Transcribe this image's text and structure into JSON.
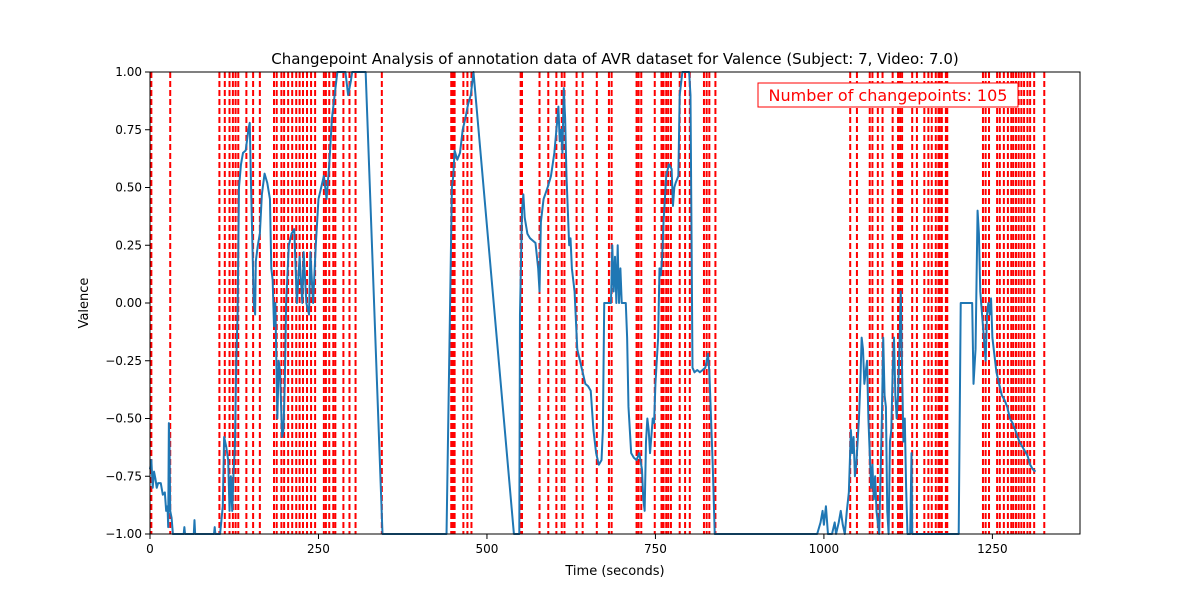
{
  "chart_data": {
    "type": "line",
    "title": "Changepoint Analysis of annotation data of AVR dataset for Valence (Subject: 7, Video: 7.0)",
    "xlabel": "Time (seconds)",
    "ylabel": "Valence",
    "xlim": [
      0,
      1380
    ],
    "ylim": [
      -1.0,
      1.0
    ],
    "x_ticks": [
      0,
      250,
      500,
      750,
      1000,
      1250
    ],
    "y_ticks": [
      -1.0,
      -0.75,
      -0.5,
      -0.25,
      0.0,
      0.25,
      0.5,
      0.75,
      1.0
    ],
    "x_tick_labels": [
      "0",
      "250",
      "500",
      "750",
      "1000",
      "1250"
    ],
    "y_tick_labels": [
      "−1.00",
      "−0.75",
      "−0.50",
      "−0.25",
      "0.00",
      "0.25",
      "0.50",
      "0.75",
      "1.00"
    ],
    "grid": false,
    "annotation": "Number of changepoints: 105",
    "colors": {
      "series": "#1f77b4",
      "changepoints": "#ff0000"
    },
    "series": [
      {
        "values": [
          [
            0,
            -0.72
          ],
          [
            2,
            -0.68
          ],
          [
            4,
            -0.8
          ],
          [
            6,
            -0.73
          ],
          [
            8,
            -0.76
          ],
          [
            10,
            -0.8
          ],
          [
            12,
            -0.78
          ],
          [
            16,
            -0.78
          ],
          [
            19,
            -0.83
          ],
          [
            22,
            -0.82
          ],
          [
            24,
            -0.9
          ],
          [
            26,
            -0.88
          ],
          [
            27,
            -0.97
          ],
          [
            28,
            -0.52
          ],
          [
            29,
            -0.62
          ],
          [
            30,
            -0.9
          ],
          [
            32,
            -0.93
          ],
          [
            34,
            -1.0
          ],
          [
            50,
            -1.0
          ],
          [
            51,
            -0.97
          ],
          [
            52,
            -1.0
          ],
          [
            65,
            -1.0
          ],
          [
            66,
            -0.94
          ],
          [
            67,
            -1.0
          ],
          [
            80,
            -1.0
          ],
          [
            95,
            -1.0
          ],
          [
            96,
            -0.97
          ],
          [
            97,
            -1.0
          ],
          [
            104,
            -1.0
          ],
          [
            108,
            -0.88
          ],
          [
            110,
            -0.58
          ],
          [
            113,
            -0.62
          ],
          [
            116,
            -0.68
          ],
          [
            118,
            -0.9
          ],
          [
            120,
            -0.75
          ],
          [
            122,
            -0.9
          ],
          [
            124,
            -0.73
          ],
          [
            126,
            -0.62
          ],
          [
            128,
            -0.25
          ],
          [
            130,
            -0.05
          ],
          [
            132,
            0.5
          ],
          [
            135,
            0.6
          ],
          [
            138,
            0.65
          ],
          [
            142,
            0.66
          ],
          [
            146,
            0.75
          ],
          [
            148,
            0.78
          ],
          [
            150,
            0.5
          ],
          [
            152,
            0.25
          ],
          [
            154,
            0.0
          ],
          [
            156,
            -0.05
          ],
          [
            157,
            0.18
          ],
          [
            160,
            0.25
          ],
          [
            163,
            0.3
          ],
          [
            166,
            0.47
          ],
          [
            170,
            0.56
          ],
          [
            174,
            0.52
          ],
          [
            178,
            0.45
          ],
          [
            180,
            0.15
          ],
          [
            182,
            0.1
          ],
          [
            184,
            -0.1
          ],
          [
            186,
            0.0
          ],
          [
            189,
            -0.5
          ],
          [
            191,
            -0.25
          ],
          [
            193,
            -0.3
          ],
          [
            196,
            -0.58
          ],
          [
            198,
            -0.55
          ],
          [
            200,
            -0.35
          ],
          [
            202,
            0.0
          ],
          [
            206,
            0.25
          ],
          [
            210,
            0.3
          ],
          [
            214,
            0.32
          ],
          [
            218,
            0.0
          ],
          [
            222,
            0.2
          ],
          [
            226,
            0.0
          ],
          [
            228,
            0.22
          ],
          [
            232,
            0.0
          ],
          [
            236,
            -0.05
          ],
          [
            238,
            0.22
          ],
          [
            242,
            0.0
          ],
          [
            246,
            0.25
          ],
          [
            250,
            0.45
          ],
          [
            254,
            0.5
          ],
          [
            258,
            0.55
          ],
          [
            262,
            0.45
          ],
          [
            266,
            0.6
          ],
          [
            270,
            0.8
          ],
          [
            274,
            0.9
          ],
          [
            278,
            1.0
          ],
          [
            290,
            1.0
          ],
          [
            294,
            0.9
          ],
          [
            298,
            0.96
          ],
          [
            300,
            1.0
          ],
          [
            310,
            1.0
          ],
          [
            320,
            1.0
          ],
          [
            345,
            -1.0
          ],
          [
            440,
            -1.0
          ],
          [
            448,
            0.5
          ],
          [
            450,
            0.55
          ],
          [
            452,
            0.66
          ],
          [
            456,
            0.62
          ],
          [
            460,
            0.65
          ],
          [
            464,
            0.75
          ],
          [
            468,
            0.8
          ],
          [
            472,
            0.86
          ],
          [
            476,
            0.9
          ],
          [
            480,
            1.0
          ],
          [
            540,
            -1.0
          ],
          [
            548,
            -1.0
          ],
          [
            549,
            -0.05
          ],
          [
            552,
            0.4
          ],
          [
            554,
            0.47
          ],
          [
            556,
            0.37
          ],
          [
            560,
            0.3
          ],
          [
            564,
            0.28
          ],
          [
            568,
            0.27
          ],
          [
            572,
            0.26
          ],
          [
            576,
            0.15
          ],
          [
            578,
            0.05
          ],
          [
            580,
            0.35
          ],
          [
            584,
            0.45
          ],
          [
            590,
            0.5
          ],
          [
            595,
            0.55
          ],
          [
            600,
            0.65
          ],
          [
            604,
            0.78
          ],
          [
            606,
            0.85
          ],
          [
            608,
            0.7
          ],
          [
            610,
            0.75
          ],
          [
            612,
            0.65
          ],
          [
            614,
            0.93
          ],
          [
            616,
            0.8
          ],
          [
            618,
            0.55
          ],
          [
            620,
            0.4
          ],
          [
            622,
            0.25
          ],
          [
            624,
            0.28
          ],
          [
            626,
            0.15
          ],
          [
            630,
            0.05
          ],
          [
            634,
            -0.2
          ],
          [
            638,
            -0.25
          ],
          [
            642,
            -0.3
          ],
          [
            646,
            -0.35
          ],
          [
            650,
            -0.36
          ],
          [
            654,
            -0.38
          ],
          [
            658,
            -0.55
          ],
          [
            662,
            -0.65
          ],
          [
            666,
            -0.7
          ],
          [
            670,
            -0.68
          ],
          [
            672,
            -0.55
          ],
          [
            674,
            0.0
          ],
          [
            680,
            0.0
          ],
          [
            684,
            0.0
          ],
          [
            686,
            0.25
          ],
          [
            688,
            0.05
          ],
          [
            690,
            0.2
          ],
          [
            692,
            0.0
          ],
          [
            694,
            0.25
          ],
          [
            696,
            0.0
          ],
          [
            698,
            0.15
          ],
          [
            700,
            0.0
          ],
          [
            706,
            0.0
          ],
          [
            708,
            -0.15
          ],
          [
            710,
            -0.45
          ],
          [
            714,
            -0.65
          ],
          [
            718,
            -0.67
          ],
          [
            722,
            -0.68
          ],
          [
            726,
            -0.65
          ],
          [
            730,
            -0.72
          ],
          [
            732,
            -0.85
          ],
          [
            734,
            -0.9
          ],
          [
            736,
            -0.6
          ],
          [
            738,
            -0.5
          ],
          [
            740,
            -0.55
          ],
          [
            742,
            -0.65
          ],
          [
            746,
            -0.5
          ],
          [
            748,
            -0.52
          ],
          [
            750,
            -0.35
          ],
          [
            752,
            -0.25
          ],
          [
            754,
            -0.15
          ],
          [
            756,
            0.15
          ],
          [
            758,
            0.12
          ],
          [
            760,
            0.2
          ],
          [
            762,
            0.35
          ],
          [
            766,
            0.55
          ],
          [
            770,
            0.6
          ],
          [
            774,
            0.58
          ],
          [
            776,
            0.42
          ],
          [
            778,
            0.5
          ],
          [
            780,
            0.52
          ],
          [
            784,
            0.55
          ],
          [
            786,
            0.9
          ],
          [
            788,
            0.95
          ],
          [
            790,
            1.0
          ],
          [
            800,
            1.0
          ],
          [
            802,
            0.9
          ],
          [
            805,
            -0.28
          ],
          [
            808,
            -0.3
          ],
          [
            812,
            -0.29
          ],
          [
            816,
            -0.3
          ],
          [
            820,
            -0.29
          ],
          [
            824,
            -0.28
          ],
          [
            828,
            -0.22
          ],
          [
            830,
            -0.3
          ],
          [
            835,
            -0.7
          ],
          [
            838,
            -1.0
          ],
          [
            990,
            -1.0
          ],
          [
            995,
            -0.95
          ],
          [
            998,
            -0.9
          ],
          [
            1000,
            -0.96
          ],
          [
            1003,
            -0.88
          ],
          [
            1006,
            -1.0
          ],
          [
            1012,
            -1.0
          ],
          [
            1016,
            -0.95
          ],
          [
            1018,
            -1.0
          ],
          [
            1022,
            -0.95
          ],
          [
            1025,
            -0.9
          ],
          [
            1028,
            -0.96
          ],
          [
            1031,
            -1.0
          ],
          [
            1034,
            -0.9
          ],
          [
            1037,
            -0.82
          ],
          [
            1040,
            -0.55
          ],
          [
            1042,
            -0.65
          ],
          [
            1044,
            -0.58
          ],
          [
            1046,
            -0.75
          ],
          [
            1048,
            -0.7
          ],
          [
            1050,
            -0.6
          ],
          [
            1052,
            -0.5
          ],
          [
            1054,
            -0.35
          ],
          [
            1056,
            -0.15
          ],
          [
            1058,
            -0.2
          ],
          [
            1060,
            -0.35
          ],
          [
            1062,
            -0.3
          ],
          [
            1064,
            -0.25
          ],
          [
            1066,
            -0.5
          ],
          [
            1068,
            -0.65
          ],
          [
            1070,
            -0.8
          ],
          [
            1072,
            -0.7
          ],
          [
            1074,
            -0.85
          ],
          [
            1076,
            -0.75
          ],
          [
            1078,
            -0.9
          ],
          [
            1080,
            -0.95
          ],
          [
            1082,
            -1.0
          ],
          [
            1086,
            -0.5
          ],
          [
            1088,
            -0.15
          ],
          [
            1090,
            -0.4
          ],
          [
            1092,
            -0.45
          ],
          [
            1094,
            -0.9
          ],
          [
            1096,
            -1.0
          ],
          [
            1098,
            -0.6
          ],
          [
            1100,
            -0.55
          ],
          [
            1102,
            -0.3
          ],
          [
            1104,
            -0.15
          ],
          [
            1106,
            -0.4
          ],
          [
            1108,
            -0.5
          ],
          [
            1110,
            -0.4
          ],
          [
            1112,
            -0.2
          ],
          [
            1114,
            0.05
          ],
          [
            1116,
            -0.3
          ],
          [
            1118,
            -0.6
          ],
          [
            1120,
            -0.5
          ],
          [
            1122,
            -0.8
          ],
          [
            1124,
            -1.0
          ],
          [
            1128,
            -1.0
          ],
          [
            1130,
            -0.65
          ],
          [
            1131,
            -1.0
          ],
          [
            1200,
            -1.0
          ],
          [
            1203,
            0.0
          ],
          [
            1208,
            0.0
          ],
          [
            1212,
            0.0
          ],
          [
            1215,
            0.0
          ],
          [
            1220,
            0.0
          ],
          [
            1222,
            -0.35
          ],
          [
            1225,
            -0.2
          ],
          [
            1228,
            0.4
          ],
          [
            1230,
            0.3
          ],
          [
            1232,
            0.05
          ],
          [
            1236,
            -0.1
          ],
          [
            1240,
            -0.25
          ],
          [
            1242,
            -0.05
          ],
          [
            1244,
            0.0
          ],
          [
            1246,
            -0.05
          ],
          [
            1248,
            0.02
          ],
          [
            1250,
            -0.15
          ],
          [
            1252,
            -0.2
          ],
          [
            1256,
            -0.3
          ],
          [
            1260,
            -0.35
          ],
          [
            1264,
            -0.4
          ],
          [
            1268,
            -0.42
          ],
          [
            1272,
            -0.45
          ],
          [
            1276,
            -0.5
          ],
          [
            1280,
            -0.52
          ],
          [
            1284,
            -0.55
          ],
          [
            1290,
            -0.6
          ],
          [
            1296,
            -0.63
          ],
          [
            1302,
            -0.66
          ],
          [
            1306,
            -0.7
          ],
          [
            1310,
            -0.72
          ],
          [
            1314,
            -0.73
          ]
        ]
      }
    ],
    "changepoints": [
      2,
      30,
      103,
      111,
      118,
      123,
      127,
      131,
      143,
      153,
      163,
      184,
      188,
      195,
      199,
      205,
      211,
      217,
      222,
      227,
      233,
      239,
      245,
      258,
      261,
      266,
      272,
      275,
      287,
      296,
      305,
      344,
      447,
      449,
      450,
      452,
      465,
      471,
      477,
      550,
      552,
      578,
      591,
      603,
      611,
      615,
      633,
      642,
      663,
      681,
      685,
      722,
      725,
      729,
      749,
      759,
      762,
      766,
      769,
      773,
      786,
      794,
      801,
      822,
      826,
      830,
      839,
      1039,
      1049,
      1068,
      1072,
      1080,
      1087,
      1102,
      1110,
      1113,
      1116,
      1131,
      1138,
      1149,
      1155,
      1160,
      1166,
      1170,
      1172,
      1175,
      1181,
      1183,
      1236,
      1240,
      1245,
      1257,
      1261,
      1267,
      1273,
      1278,
      1281,
      1285,
      1289,
      1293,
      1297,
      1302,
      1306,
      1312,
      1327
    ]
  }
}
